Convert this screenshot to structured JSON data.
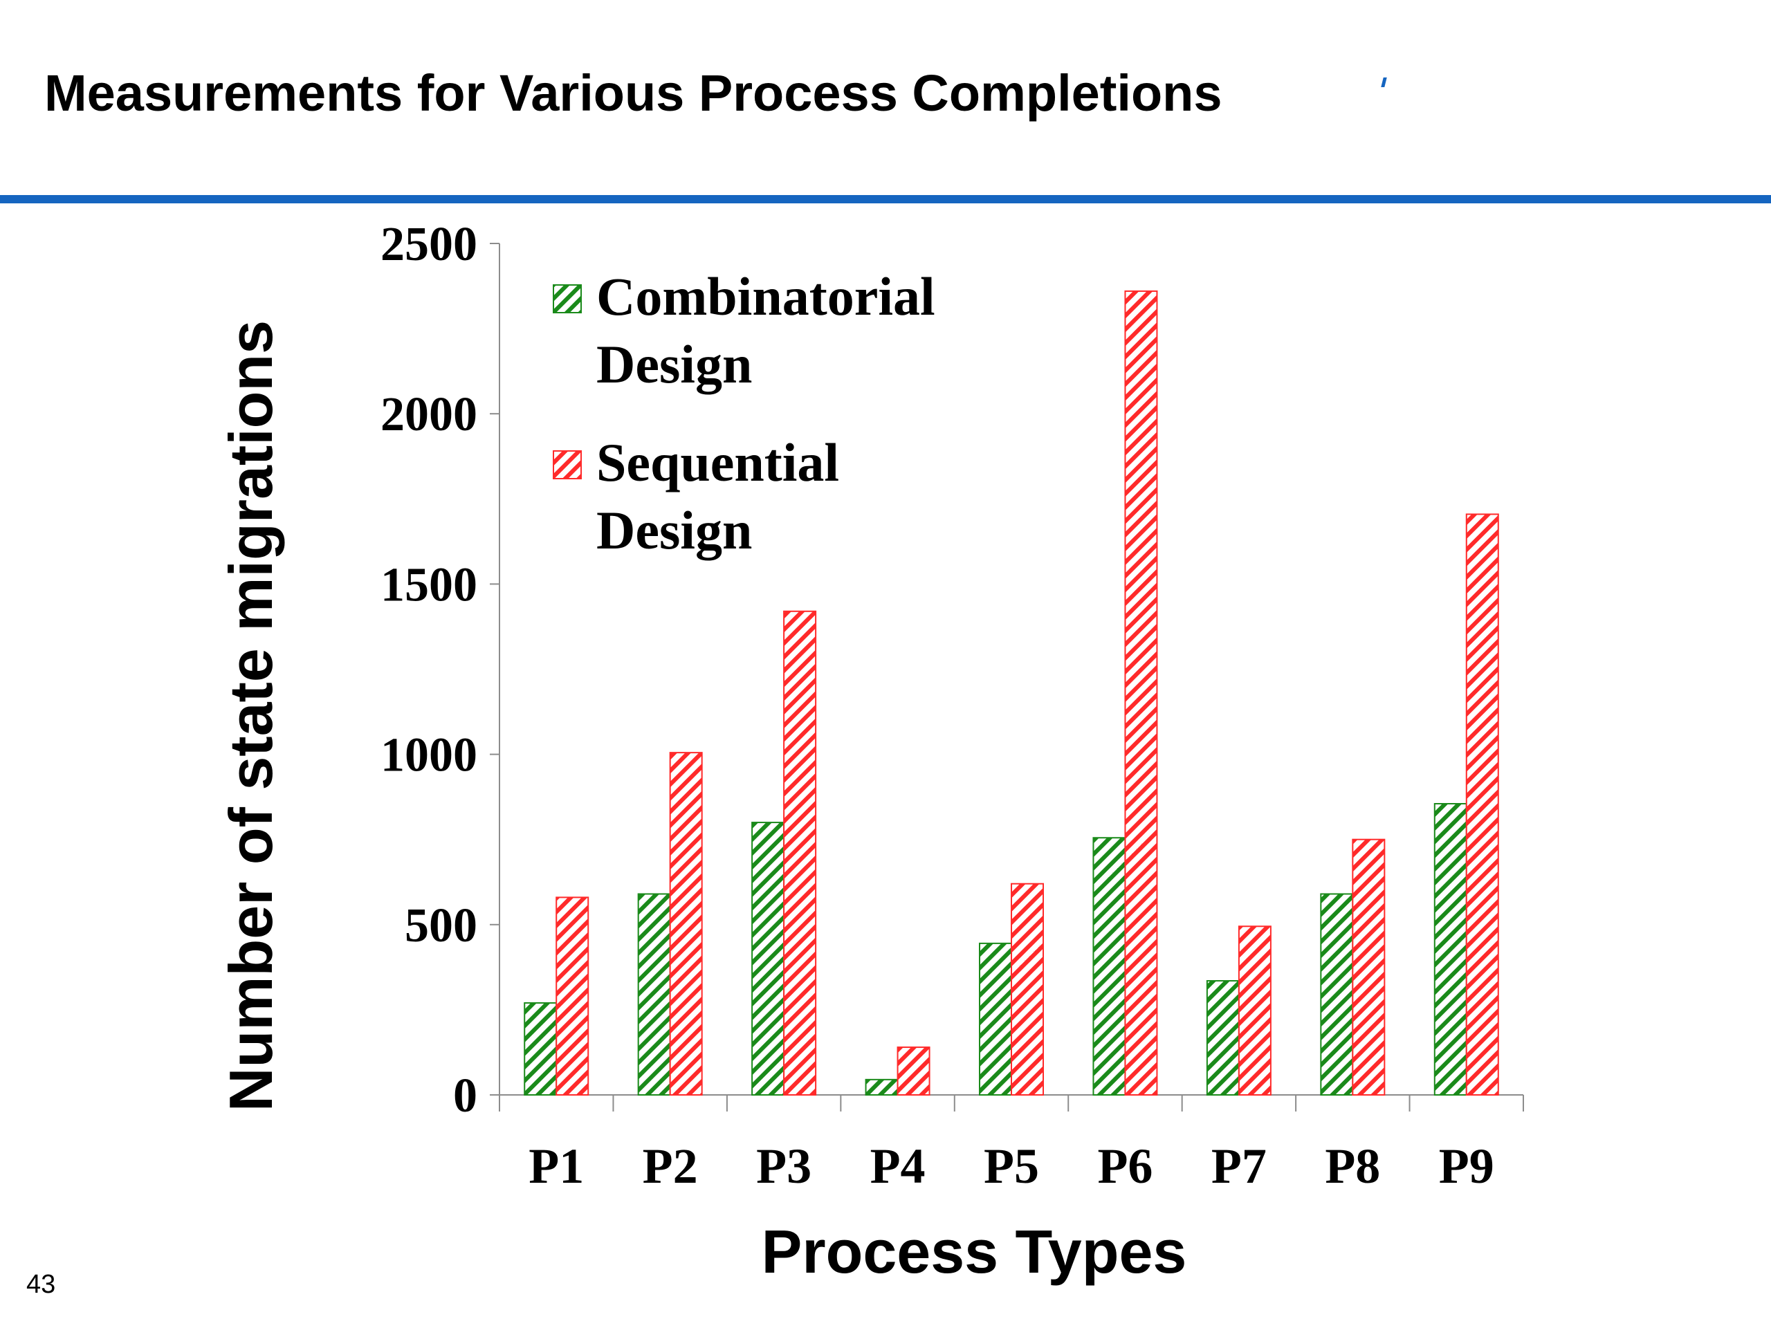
{
  "slide": {
    "title": "Measurements for Various Process Completions",
    "page_number": "43"
  },
  "colors": {
    "rule": "#1565c0",
    "combinatorial": "#1a8a1a",
    "sequential": "#ff2a2a"
  },
  "chart_data": {
    "type": "bar",
    "title": "",
    "xlabel": "Process Types",
    "ylabel": "Number of state migrations",
    "ylim": [
      0,
      2500
    ],
    "yticks": [
      0,
      500,
      1000,
      1500,
      2000,
      2500
    ],
    "categories": [
      "P1",
      "P2",
      "P3",
      "P4",
      "P5",
      "P6",
      "P7",
      "P8",
      "P9"
    ],
    "series": [
      {
        "name": "Combinatorial Design",
        "legend_lines": [
          "Combinatorial",
          "Design"
        ],
        "pattern": "hatched",
        "values": [
          270,
          590,
          800,
          45,
          445,
          755,
          335,
          590,
          855
        ]
      },
      {
        "name": "Sequential Design",
        "legend_lines": [
          "Sequential",
          "Design"
        ],
        "pattern": "hatched",
        "values": [
          580,
          1005,
          1420,
          140,
          620,
          2360,
          495,
          750,
          1705
        ]
      }
    ],
    "legend_position": "top-left",
    "grid": false
  }
}
